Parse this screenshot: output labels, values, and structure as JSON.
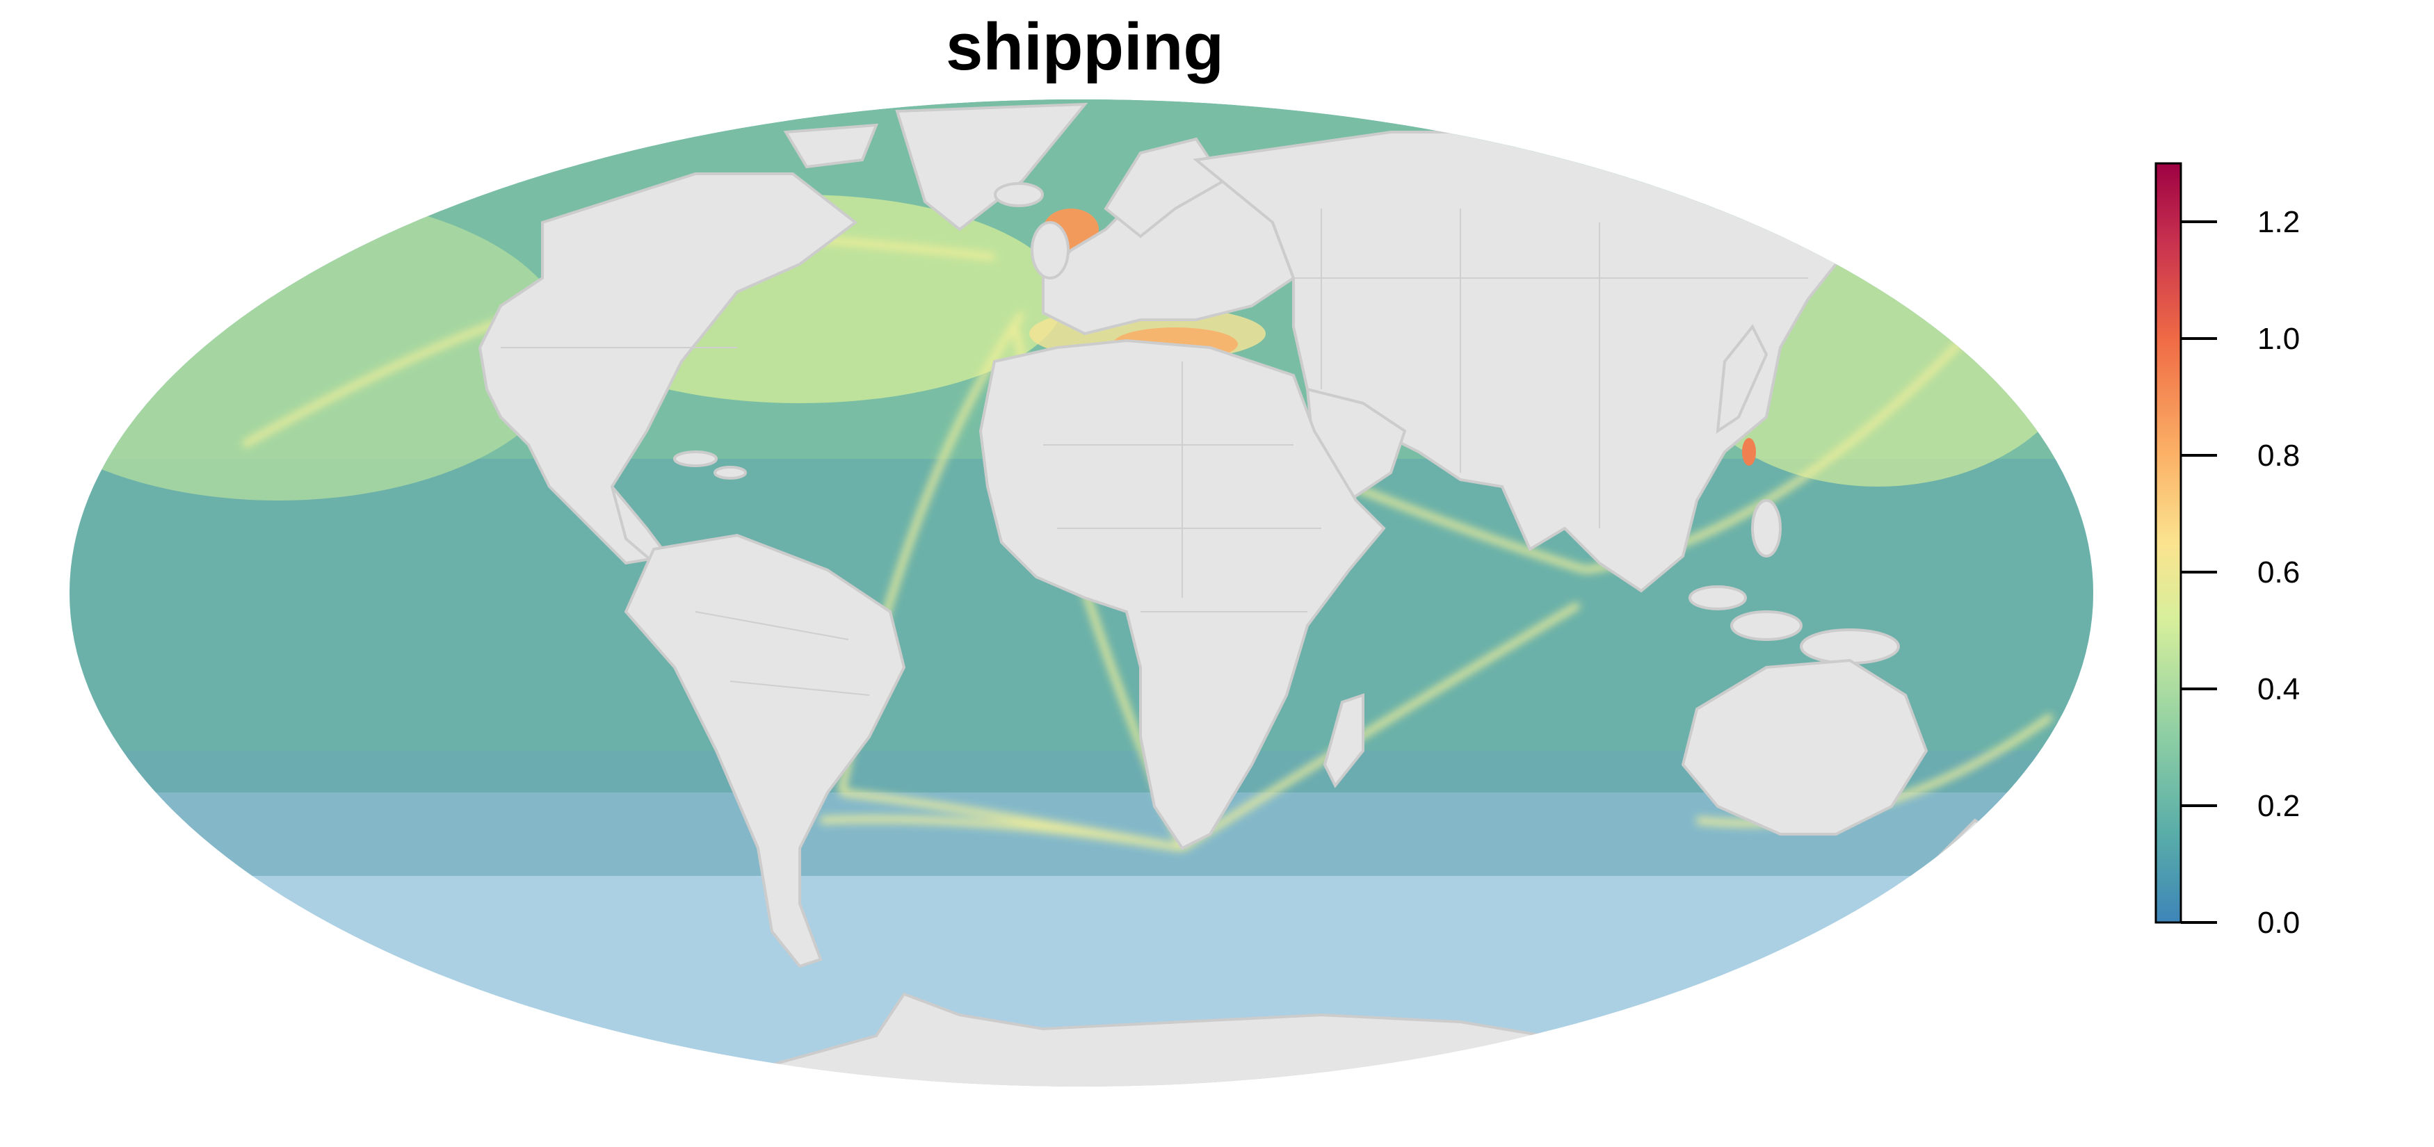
{
  "map": {
    "title": "shipping",
    "projection": "Mollweide",
    "colors": {
      "ocean": "#abcfe3",
      "land": "#e5e5e5",
      "borders": "#c8c8c8",
      "coast": "#cccccc"
    }
  },
  "legend": {
    "type": "continuous-colorbar",
    "orientation": "vertical",
    "placement": "right",
    "range": [
      0.0,
      1.3
    ],
    "ticks": [
      "0.0",
      "0.2",
      "0.4",
      "0.6",
      "0.8",
      "1.0",
      "1.2"
    ],
    "tick_values": [
      0.0,
      0.2,
      0.4,
      0.6,
      0.8,
      1.0,
      1.2
    ],
    "colors": [
      "#3d85b8",
      "#5aaea8",
      "#8fcfa4",
      "#d7ef9b",
      "#fbe38f",
      "#fbb066",
      "#ef6a45",
      "#c7304f",
      "#9e0142"
    ]
  }
}
